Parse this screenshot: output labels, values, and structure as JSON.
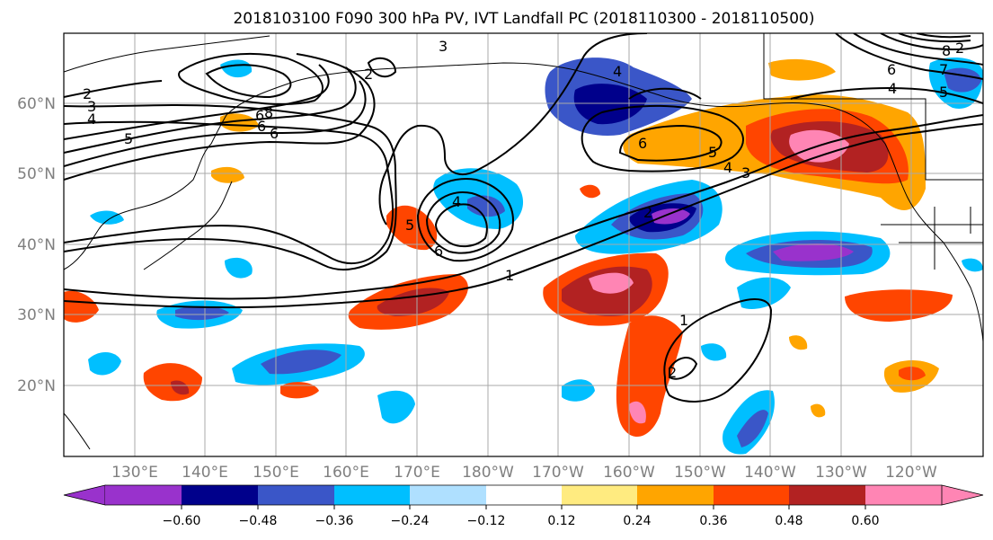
{
  "title": "2018103100 F090 300 hPa PV, IVT Landfall PC (2018110300 - 2018110500)",
  "map": {
    "lat_ticks": [
      "60°N",
      "50°N",
      "40°N",
      "30°N",
      "20°N"
    ],
    "lon_ticks": [
      "130°E",
      "140°E",
      "150°E",
      "160°E",
      "170°E",
      "180°W",
      "170°W",
      "160°W",
      "150°W",
      "140°W",
      "130°W",
      "120°W"
    ]
  },
  "colorbar": {
    "colors": [
      "#9932cc",
      "#00008b",
      "#3a56c8",
      "#00bfff",
      "#afe0ff",
      "#ffffff",
      "#ffeb80",
      "#ffa500",
      "#ff4500",
      "#b22222",
      "#ff85b4"
    ],
    "labels": [
      "−0.60",
      "−0.48",
      "−0.36",
      "−0.24",
      "−0.12",
      "0.12",
      "0.24",
      "0.36",
      "0.48",
      "0.60"
    ]
  },
  "contour_labels": [
    "2",
    "3",
    "4",
    "5",
    "6",
    "3",
    "2",
    "8",
    "6",
    "4",
    "4",
    "6",
    "5",
    "4",
    "3",
    "2",
    "6",
    "1",
    "1",
    "2",
    "8",
    "7",
    "6",
    "5",
    "4",
    "2",
    "5",
    "6"
  ]
}
